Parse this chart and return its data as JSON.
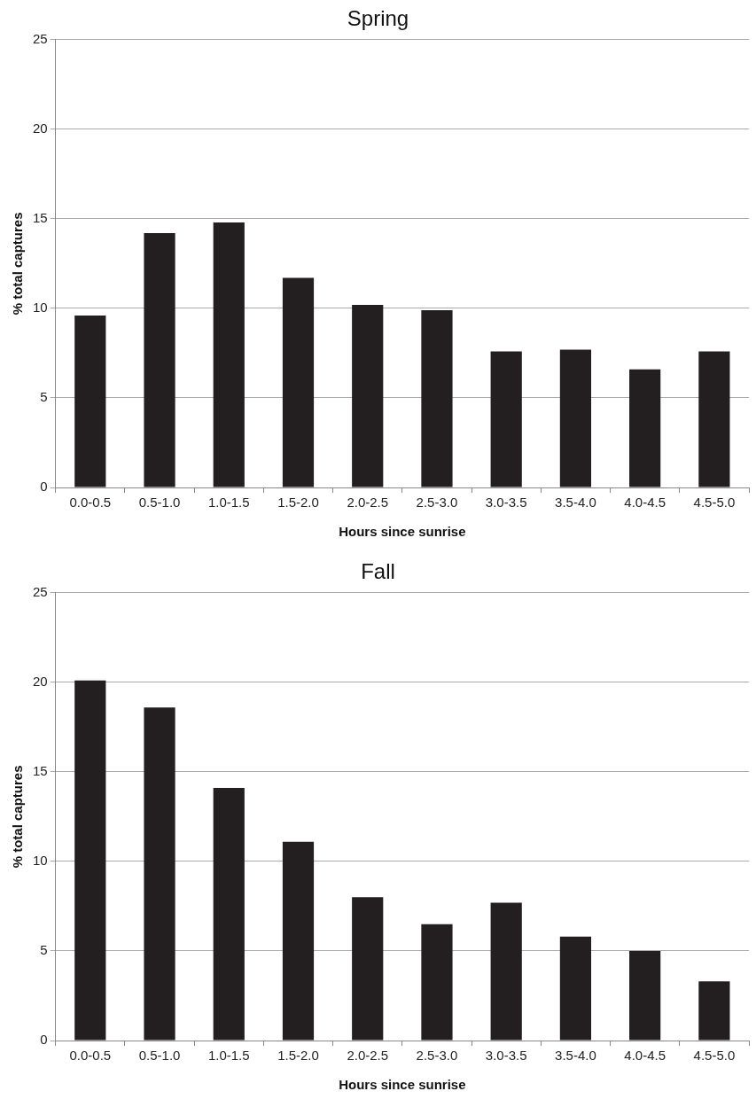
{
  "chart_data": [
    {
      "type": "bar",
      "title": "Spring",
      "xlabel": "Hours since sunrise",
      "ylabel": "% total captures",
      "categories": [
        "0.0-0.5",
        "0.5-1.0",
        "1.0-1.5",
        "1.5-2.0",
        "2.0-2.5",
        "2.5-3.0",
        "3.0-3.5",
        "3.5-4.0",
        "4.0-4.5",
        "4.5-5.0"
      ],
      "values": [
        9.6,
        14.2,
        14.8,
        11.7,
        10.2,
        9.9,
        7.6,
        7.7,
        6.6,
        7.6
      ],
      "color": "#231f20",
      "ylim": [
        0,
        25
      ],
      "yticks": [
        0,
        5,
        10,
        15,
        20,
        25
      ],
      "grid": "y"
    },
    {
      "type": "bar",
      "title": "Fall",
      "xlabel": "Hours since sunrise",
      "ylabel": "% total captures",
      "categories": [
        "0.0-0.5",
        "0.5-1.0",
        "1.0-1.5",
        "1.5-2.0",
        "2.0-2.5",
        "2.5-3.0",
        "3.0-3.5",
        "3.5-4.0",
        "4.0-4.5",
        "4.5-5.0"
      ],
      "values": [
        20.1,
        18.6,
        14.1,
        11.1,
        8.0,
        6.5,
        7.7,
        5.8,
        5.0,
        3.3
      ],
      "color": "#231f20",
      "ylim": [
        0,
        25
      ],
      "yticks": [
        0,
        5,
        10,
        15,
        20,
        25
      ],
      "grid": "y"
    }
  ]
}
